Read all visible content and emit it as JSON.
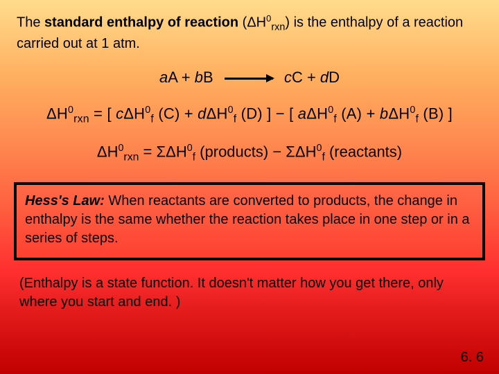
{
  "intro": {
    "prefix": "The ",
    "bold": "standard enthalpy of reaction",
    "mid1": " (",
    "delta": "Δ",
    "H": "H",
    "sup0": "0",
    "sub_rxn": "rxn",
    "mid2": ") is the enthalpy of a reaction carried out at 1 atm."
  },
  "reaction": {
    "lhs_a": "a",
    "lhs_A": "A + ",
    "lhs_b": "b",
    "lhs_B": "B",
    "rhs_c": "c",
    "rhs_C": "C + ",
    "rhs_d": "d",
    "rhs_D": "D"
  },
  "eq1": {
    "d": "Δ",
    "H": "H",
    "s0": "0",
    "rxn": "rxn",
    "eq": " = ",
    "open": " [ ",
    "c": "c",
    "Hf": "H",
    "f": "f",
    "C": " (C)",
    "plus": " + ",
    "dd": "d",
    "D": " (D)",
    "close": " ] ",
    "minus": " − ",
    "a": "a",
    "A": " (A)",
    "b": "b",
    "B": " (B)"
  },
  "eq2": {
    "d": "Δ",
    "H": "H",
    "s0": "0",
    "rxn": "rxn",
    "eq": " = ",
    "sigma": "Σ",
    "f": "f",
    "prod": " (products)",
    "minus": "  −  ",
    "react": " (reactants)"
  },
  "hess": {
    "title": "Hess's Law:",
    "body": "  When reactants are converted to products, the change in enthalpy is the same whether the reaction takes place in one step or in a series of steps."
  },
  "statefn": "(Enthalpy is a state function.  It doesn't matter how you get there, only where you start and end. )",
  "pagenum": "6. 6"
}
